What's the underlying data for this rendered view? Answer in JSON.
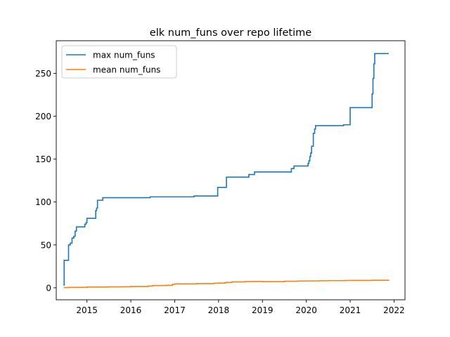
{
  "chart_data": {
    "type": "line",
    "title": "elk num_funs over repo lifetime",
    "xlabel": "",
    "ylabel": "",
    "xlim": [
      2014.3,
      2022.25
    ],
    "ylim": [
      -14,
      288
    ],
    "x_ticks": [
      2015,
      2016,
      2017,
      2018,
      2019,
      2020,
      2021,
      2022
    ],
    "x_tick_labels": [
      "2015",
      "2016",
      "2017",
      "2018",
      "2019",
      "2020",
      "2021",
      "2022"
    ],
    "y_ticks": [
      0,
      50,
      100,
      150,
      200,
      250
    ],
    "y_tick_labels": [
      "0",
      "50",
      "100",
      "150",
      "200",
      "250"
    ],
    "grid": false,
    "legend_position": "top-left",
    "step": true,
    "series": [
      {
        "name": "max num_funs",
        "color": "#1f77b4",
        "points": [
          [
            2014.47,
            3
          ],
          [
            2014.48,
            32
          ],
          [
            2014.57,
            32
          ],
          [
            2014.58,
            50
          ],
          [
            2014.62,
            52
          ],
          [
            2014.66,
            58
          ],
          [
            2014.7,
            60
          ],
          [
            2014.73,
            66
          ],
          [
            2014.76,
            71
          ],
          [
            2014.92,
            71
          ],
          [
            2014.95,
            74
          ],
          [
            2014.98,
            76
          ],
          [
            2015.0,
            81
          ],
          [
            2015.18,
            81
          ],
          [
            2015.2,
            90
          ],
          [
            2015.22,
            93
          ],
          [
            2015.24,
            102
          ],
          [
            2015.32,
            102
          ],
          [
            2015.36,
            105
          ],
          [
            2016.42,
            105
          ],
          [
            2016.44,
            106
          ],
          [
            2017.42,
            106
          ],
          [
            2017.44,
            107
          ],
          [
            2017.97,
            107
          ],
          [
            2017.98,
            117
          ],
          [
            2018.17,
            117
          ],
          [
            2018.18,
            129
          ],
          [
            2018.67,
            129
          ],
          [
            2018.69,
            132
          ],
          [
            2018.8,
            132
          ],
          [
            2018.82,
            135
          ],
          [
            2019.63,
            135
          ],
          [
            2019.66,
            139
          ],
          [
            2019.7,
            139
          ],
          [
            2019.72,
            142
          ],
          [
            2020.02,
            142
          ],
          [
            2020.04,
            145
          ],
          [
            2020.06,
            148
          ],
          [
            2020.08,
            153
          ],
          [
            2020.1,
            157
          ],
          [
            2020.12,
            165
          ],
          [
            2020.16,
            180
          ],
          [
            2020.19,
            185
          ],
          [
            2020.21,
            189
          ],
          [
            2020.83,
            189
          ],
          [
            2020.85,
            190
          ],
          [
            2020.98,
            190
          ],
          [
            2021.0,
            210
          ],
          [
            2021.48,
            210
          ],
          [
            2021.5,
            226
          ],
          [
            2021.52,
            244
          ],
          [
            2021.54,
            261
          ],
          [
            2021.56,
            273
          ],
          [
            2021.88,
            273
          ]
        ]
      },
      {
        "name": "mean num_funs",
        "color": "#ff7f0e",
        "points": [
          [
            2014.47,
            0.3
          ],
          [
            2014.6,
            0.5
          ],
          [
            2015.0,
            0.9
          ],
          [
            2015.5,
            1.1
          ],
          [
            2015.8,
            1.2
          ],
          [
            2016.0,
            1.5
          ],
          [
            2016.4,
            2.0
          ],
          [
            2016.5,
            2.6
          ],
          [
            2016.8,
            2.9
          ],
          [
            2016.95,
            4.0
          ],
          [
            2017.0,
            4.6
          ],
          [
            2017.5,
            4.9
          ],
          [
            2017.9,
            5.3
          ],
          [
            2018.0,
            5.5
          ],
          [
            2018.15,
            6.2
          ],
          [
            2018.3,
            6.8
          ],
          [
            2018.6,
            7.2
          ],
          [
            2018.8,
            7.3
          ],
          [
            2019.0,
            7.1
          ],
          [
            2019.5,
            7.6
          ],
          [
            2019.8,
            7.9
          ],
          [
            2020.0,
            8.0
          ],
          [
            2020.3,
            8.2
          ],
          [
            2020.5,
            8.3
          ],
          [
            2020.9,
            8.5
          ],
          [
            2021.0,
            8.6
          ],
          [
            2021.5,
            8.8
          ],
          [
            2021.88,
            9.2
          ]
        ]
      }
    ]
  }
}
